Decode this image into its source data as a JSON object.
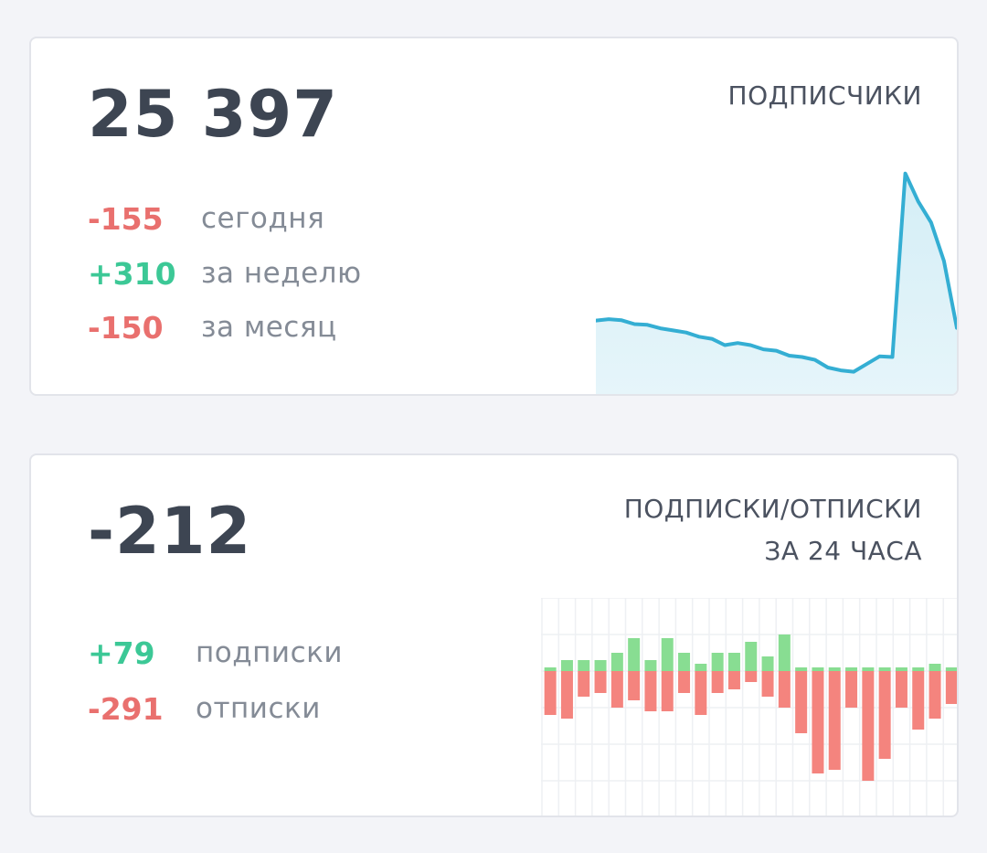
{
  "subscribers_card": {
    "total": "25 397",
    "title": "ПОДПИСЧИКИ",
    "stats": [
      {
        "value": "-155",
        "label": "сегодня",
        "trend": "negative"
      },
      {
        "value": "+310",
        "label": "за неделю",
        "trend": "positive"
      },
      {
        "value": "-150",
        "label": "за месяц",
        "trend": "negative"
      }
    ]
  },
  "flow_card": {
    "total": "-212",
    "title_line1": "ПОДПИСКИ/ОТПИСКИ",
    "title_line2": "ЗА 24 ЧАСА",
    "stats": [
      {
        "value": "+79",
        "label": "подписки",
        "trend": "positive"
      },
      {
        "value": "-291",
        "label": "отписки",
        "trend": "negative"
      }
    ]
  },
  "colors": {
    "positive": "#3cc896",
    "negative": "#e9706e",
    "line": "#34aed3",
    "area": "#d4eef6",
    "bar_positive": "#88dd92",
    "bar_negative": "#f4847e"
  },
  "chart_data": [
    {
      "type": "area",
      "series": [
        {
          "values": [
            25500,
            25520,
            25505,
            25450,
            25440,
            25390,
            25360,
            25330,
            25270,
            25240,
            25150,
            25180,
            25150,
            25090,
            25070,
            25000,
            24980,
            24940,
            24830,
            24790,
            24770,
            24880,
            24990,
            24980,
            27600,
            27200,
            26900,
            26350,
            25397
          ]
        }
      ]
    },
    {
      "type": "bar",
      "series": [
        {
          "values": [
            1,
            3,
            3,
            3,
            5,
            9,
            3,
            9,
            5,
            2,
            5,
            5,
            8,
            4,
            10,
            1,
            1,
            0,
            1,
            1,
            0,
            1,
            0,
            2,
            1
          ]
        },
        {
          "values": [
            -12,
            -13,
            -7,
            -6,
            -10,
            -8,
            -11,
            -11,
            -6,
            -12,
            -6,
            -5,
            -3,
            -7,
            -10,
            -17,
            -28,
            -27,
            -10,
            -30,
            -24,
            -10,
            -16,
            -13,
            -9
          ]
        }
      ]
    }
  ]
}
